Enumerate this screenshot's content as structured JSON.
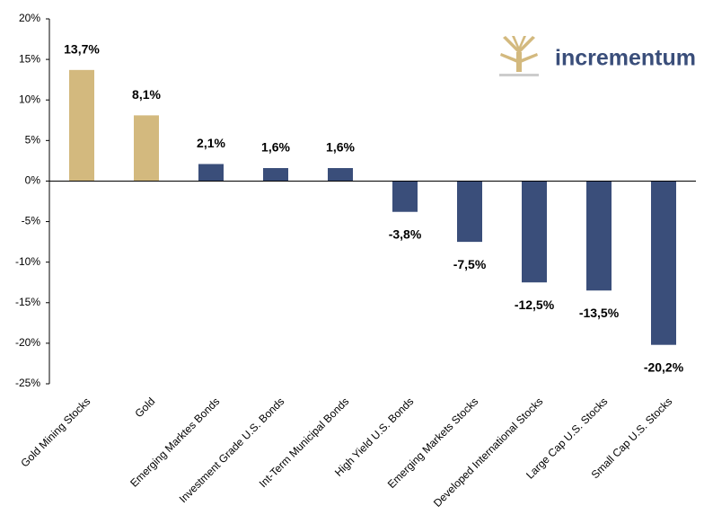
{
  "chart_data": {
    "type": "bar",
    "logo": "incrementum",
    "categories": [
      "Gold Mining Stocks",
      "Gold",
      "Emerging Marktes Bonds",
      "Investment Grade U.S. Bonds",
      "Int-Term Municipal Bonds",
      "High Yield U.S. Bonds",
      "Emerging Markets Stocks",
      "Developed International Stocks",
      "Large Cap U.S. Stocks",
      "Small Cap U.S. Stocks"
    ],
    "values": [
      13.7,
      8.1,
      2.1,
      1.6,
      1.6,
      -3.8,
      -7.5,
      -12.5,
      -13.5,
      -20.2
    ],
    "value_labels": [
      "13,7%",
      "8,1%",
      "2,1%",
      "1,6%",
      "1,6%",
      "-3,8%",
      "-7,5%",
      "-12,5%",
      "-13,5%",
      "-20,2%"
    ],
    "colors": [
      "#d3b97e",
      "#d3b97e",
      "#3a4e7a",
      "#3a4e7a",
      "#3a4e7a",
      "#3a4e7a",
      "#3a4e7a",
      "#3a4e7a",
      "#3a4e7a",
      "#3a4e7a"
    ],
    "ylim": [
      -25,
      20
    ],
    "yticks": [
      {
        "value": -25,
        "label": "-25%"
      },
      {
        "value": -20,
        "label": "-20%"
      },
      {
        "value": -15,
        "label": "-15%"
      },
      {
        "value": -10,
        "label": "-10%"
      },
      {
        "value": -5,
        "label": "-5%"
      },
      {
        "value": 0,
        "label": "0%"
      },
      {
        "value": 5,
        "label": "5%"
      },
      {
        "value": 10,
        "label": "10%"
      },
      {
        "value": 15,
        "label": "15%"
      },
      {
        "value": 20,
        "label": "20%"
      }
    ],
    "grid": false
  }
}
